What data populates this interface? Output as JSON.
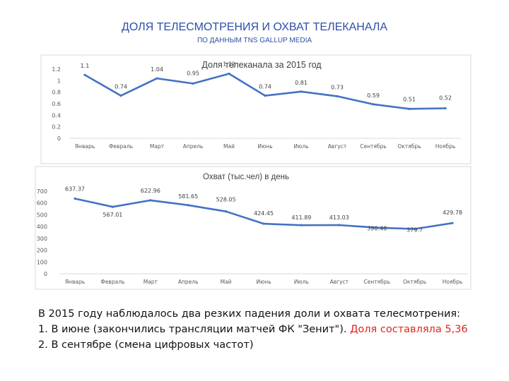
{
  "header": {
    "title": "ДОЛЯ ТЕЛЕСМОТРЕНИЯ И ОХВАТ ТЕЛЕКАНАЛА",
    "subtitle": "ПО ДАННЫМ TNS GALLUP MEDIA"
  },
  "chart_data": [
    {
      "type": "line",
      "title": "Доля телеканала за 2015 год",
      "categories": [
        "Январь",
        "Февраль",
        "Март",
        "Апрель",
        "Май",
        "Июнь",
        "Июль",
        "Август",
        "Сентябрь",
        "Октябрь",
        "Ноябрь"
      ],
      "values": [
        1.1,
        0.74,
        1.04,
        0.95,
        1.12,
        0.74,
        0.81,
        0.73,
        0.59,
        0.51,
        0.52
      ],
      "value_labels": [
        "1.1",
        "0.74",
        "1.04",
        "0.95",
        "1.12",
        "0.74",
        "0.81",
        "0.73",
        "0.59",
        "0.51",
        "0.52"
      ],
      "y_ticks": [
        "0",
        "0.2",
        "0.4",
        "0.6",
        "0.8",
        "1",
        "1.2"
      ],
      "ylim": [
        0,
        1.2
      ],
      "grid": false,
      "line_color": "#4472c4"
    },
    {
      "type": "line",
      "title": "Охват (тыс.чел) в день",
      "categories": [
        "Январь",
        "Февраль",
        "Март",
        "Апрель",
        "Май",
        "Июнь",
        "Июль",
        "Август",
        "Сентябрь",
        "Октябрь",
        "Ноябрь"
      ],
      "values": [
        637.37,
        567.01,
        622.96,
        581.65,
        528.05,
        424.45,
        411.89,
        413.03,
        390.48,
        379.7,
        429.78
      ],
      "value_labels": [
        "637.37",
        "567.01",
        "622.96",
        "581.65",
        "528.05",
        "424.45",
        "411.89",
        "413.03",
        "390.48",
        "379.7",
        "429.78"
      ],
      "y_ticks": [
        "0",
        "100",
        "200",
        "300",
        "400",
        "500",
        "600",
        "700"
      ],
      "ylim": [
        0,
        700
      ],
      "grid": false,
      "line_color": "#4472c4"
    }
  ],
  "caption": {
    "line1": "В 2015 году наблюдалось два резких падения доли и охвата телесмотрения:",
    "line2_main": "1. В июне (закончились трансляции матчей ФК \"Зенит\"). ",
    "line2_red": "Доля составляла 5,36",
    "line3": "2. В сентябре (смена цифровых частот)",
    "highlight_color": "#e0241c"
  }
}
